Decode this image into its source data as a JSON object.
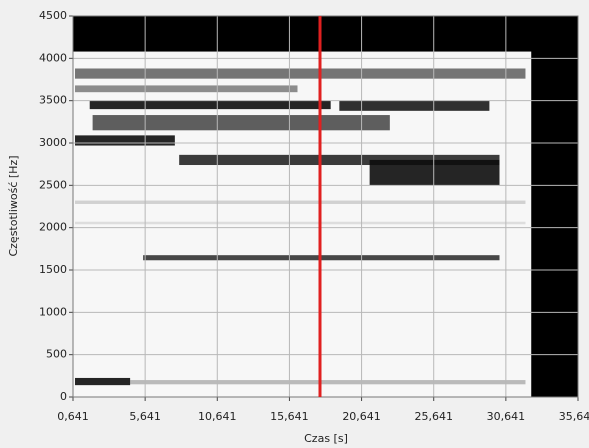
{
  "chart_data": {
    "type": "spectrogram",
    "x_label": "Czas [s]",
    "y_label": "Częstotliwość [Hz]",
    "xlim": [
      0.641,
      35.641
    ],
    "ylim": [
      0,
      4500
    ],
    "xticks": [
      {
        "value": 0.641,
        "label": "0,641"
      },
      {
        "value": 5.641,
        "label": "5,641"
      },
      {
        "value": 10.641,
        "label": "10,641"
      },
      {
        "value": 15.641,
        "label": "15,641"
      },
      {
        "value": 20.641,
        "label": "20,641"
      },
      {
        "value": 25.641,
        "label": "25,641"
      },
      {
        "value": 30.641,
        "label": "30,641"
      },
      {
        "value": 35.641,
        "label": "35,641"
      }
    ],
    "yticks": [
      0,
      500,
      1000,
      1500,
      2000,
      2500,
      3000,
      3500,
      4000,
      4500
    ],
    "grid": true,
    "plot_background": "#000000",
    "image_extent": {
      "x": [
        0.641,
        32.4
      ],
      "y": [
        0,
        4080
      ]
    },
    "cells": [
      {
        "x": [
          0.641,
          32.4
        ],
        "y": [
          0,
          4080
        ],
        "intensity": 0.03
      },
      {
        "x": [
          0.78,
          32.0
        ],
        "y": [
          2040,
          2070
        ],
        "intensity": 0.15
      },
      {
        "x": [
          0.78,
          32.0
        ],
        "y": [
          2280,
          2320
        ],
        "intensity": 0.2
      },
      {
        "x": [
          4.6,
          32.0
        ],
        "y": [
          150,
          200
        ],
        "intensity": 0.3
      },
      {
        "x": [
          0.78,
          16.2
        ],
        "y": [
          3600,
          3680
        ],
        "intensity": 0.5
      },
      {
        "x": [
          0.78,
          32.0
        ],
        "y": [
          3760,
          3880
        ],
        "intensity": 0.6
      },
      {
        "x": [
          2.0,
          22.6
        ],
        "y": [
          3150,
          3330
        ],
        "intensity": 0.7
      },
      {
        "x": [
          5.5,
          30.2
        ],
        "y": [
          1615,
          1675
        ],
        "intensity": 0.8
      },
      {
        "x": [
          1.8,
          18.5
        ],
        "y": [
          3400,
          3500
        ],
        "intensity": 0.95
      },
      {
        "x": [
          19.1,
          29.5
        ],
        "y": [
          3380,
          3500
        ],
        "intensity": 0.9
      },
      {
        "x": [
          0.78,
          7.7
        ],
        "y": [
          2970,
          3090
        ],
        "intensity": 0.95
      },
      {
        "x": [
          8.0,
          30.2
        ],
        "y": [
          2740,
          2860
        ],
        "intensity": 0.85
      },
      {
        "x": [
          21.2,
          30.2
        ],
        "y": [
          2500,
          2800
        ],
        "intensity": 0.95
      },
      {
        "x": [
          0.78,
          4.6
        ],
        "y": [
          140,
          225
        ],
        "intensity": 0.95
      }
    ],
    "cursor": {
      "x": 17.76,
      "color": "#e02020"
    }
  }
}
